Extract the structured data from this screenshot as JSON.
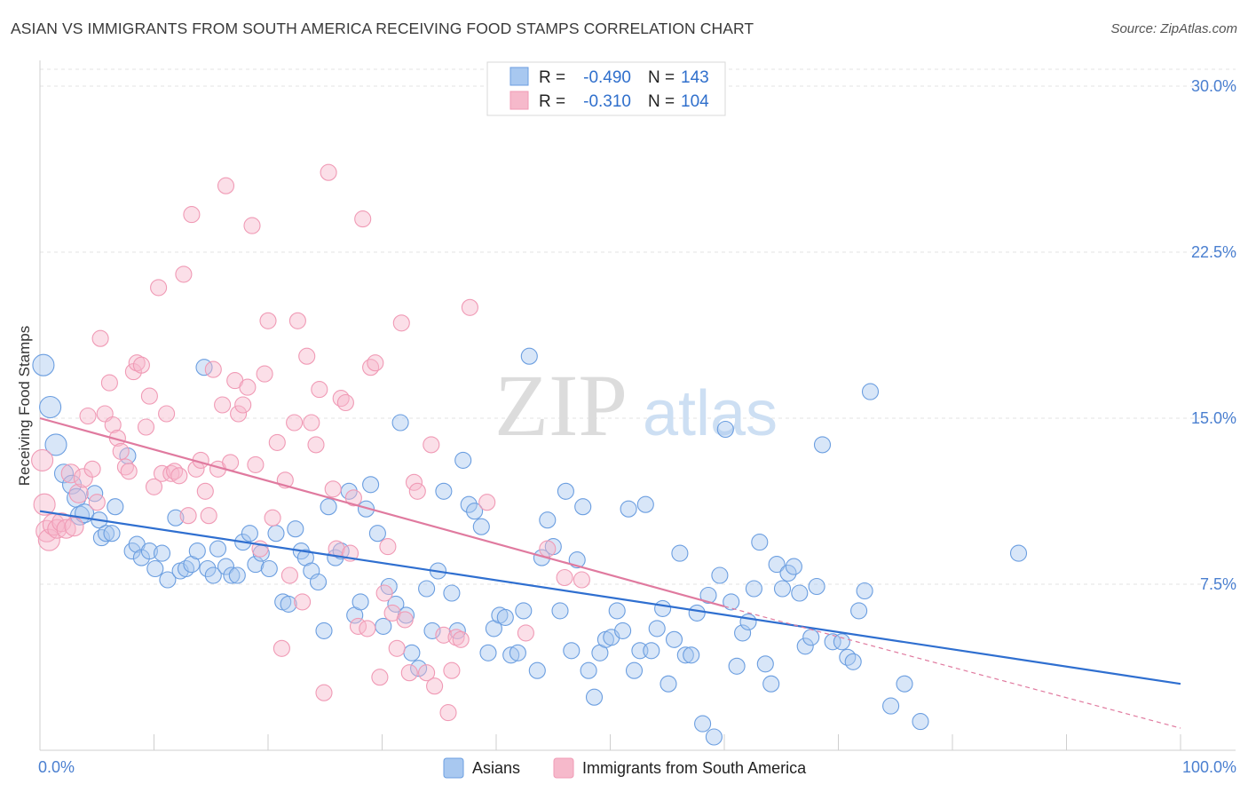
{
  "title": "ASIAN VS IMMIGRANTS FROM SOUTH AMERICA RECEIVING FOOD STAMPS CORRELATION CHART",
  "source": "Source: ZipAtlas.com",
  "watermark": {
    "part1": "ZIP",
    "part2": "atlas"
  },
  "legend": {
    "rows": [
      {
        "r_label": "R =",
        "r_value": "-0.490",
        "n_label": "N =",
        "n_value": "143",
        "color": "#a8c8f0"
      },
      {
        "r_label": "R =",
        "r_value": "-0.310",
        "n_label": "N =",
        "n_value": "104",
        "color": "#f6b9cb"
      }
    ]
  },
  "bottom_legend": [
    {
      "label": "Asians",
      "color": "#a8c8f0"
    },
    {
      "label": "Immigrants from South America",
      "color": "#f6b9cb"
    }
  ],
  "chart_data": {
    "type": "scatter",
    "ylabel": "Receiving Food Stamps",
    "xlim": [
      0,
      100
    ],
    "ylim": [
      0,
      30
    ],
    "y_ticks": [
      {
        "value": 7.5,
        "label": "7.5%"
      },
      {
        "value": 15,
        "label": "15.0%"
      },
      {
        "value": 22.5,
        "label": "22.5%"
      },
      {
        "value": 30,
        "label": "30.0%"
      }
    ],
    "x_tick_labels": [
      {
        "value": 0,
        "label": "0.0%"
      },
      {
        "value": 100,
        "label": "100.0%"
      }
    ],
    "grid": true,
    "series": [
      {
        "name": "Asians",
        "color": "#6b9ee0",
        "fill": "#a8c8f0",
        "trend": {
          "x": [
            0,
            100
          ],
          "y": [
            10.8,
            3.0
          ],
          "color": "#2f6fd0"
        },
        "points": [
          [
            0.3,
            17.4
          ],
          [
            0.9,
            15.5
          ],
          [
            1.4,
            13.8
          ],
          [
            2.1,
            12.5
          ],
          [
            2.8,
            12.0
          ],
          [
            3.2,
            11.4
          ],
          [
            3.5,
            10.6
          ],
          [
            3.9,
            10.7
          ],
          [
            4.8,
            11.6
          ],
          [
            5.2,
            10.4
          ],
          [
            5.4,
            9.6
          ],
          [
            5.8,
            9.8
          ],
          [
            6.3,
            9.8
          ],
          [
            6.6,
            11.0
          ],
          [
            7.7,
            13.3
          ],
          [
            8.1,
            9.0
          ],
          [
            8.5,
            9.3
          ],
          [
            8.9,
            8.7
          ],
          [
            9.6,
            9.0
          ],
          [
            10.1,
            8.2
          ],
          [
            10.7,
            8.9
          ],
          [
            11.2,
            7.7
          ],
          [
            11.9,
            10.5
          ],
          [
            12.3,
            8.1
          ],
          [
            12.8,
            8.2
          ],
          [
            13.3,
            8.4
          ],
          [
            13.8,
            9.0
          ],
          [
            14.4,
            17.3
          ],
          [
            14.7,
            8.2
          ],
          [
            15.2,
            7.9
          ],
          [
            15.6,
            9.1
          ],
          [
            16.3,
            8.3
          ],
          [
            16.8,
            7.9
          ],
          [
            17.3,
            7.9
          ],
          [
            17.8,
            9.4
          ],
          [
            18.4,
            9.8
          ],
          [
            18.9,
            8.4
          ],
          [
            19.4,
            8.9
          ],
          [
            20.1,
            8.2
          ],
          [
            20.7,
            9.8
          ],
          [
            21.3,
            6.7
          ],
          [
            21.8,
            6.6
          ],
          [
            22.4,
            10.0
          ],
          [
            22.9,
            9.0
          ],
          [
            23.3,
            8.7
          ],
          [
            23.8,
            8.1
          ],
          [
            24.4,
            7.6
          ],
          [
            24.9,
            5.4
          ],
          [
            25.3,
            11.0
          ],
          [
            25.9,
            8.7
          ],
          [
            26.4,
            9.0
          ],
          [
            27.1,
            11.7
          ],
          [
            27.6,
            6.1
          ],
          [
            28.1,
            6.7
          ],
          [
            28.6,
            10.9
          ],
          [
            29.0,
            12.0
          ],
          [
            29.6,
            9.8
          ],
          [
            30.1,
            5.6
          ],
          [
            30.6,
            7.4
          ],
          [
            31.2,
            6.6
          ],
          [
            31.6,
            14.8
          ],
          [
            32.1,
            6.1
          ],
          [
            32.6,
            4.4
          ],
          [
            33.2,
            3.7
          ],
          [
            33.9,
            7.3
          ],
          [
            34.4,
            5.4
          ],
          [
            34.9,
            8.1
          ],
          [
            35.4,
            11.7
          ],
          [
            36.1,
            7.1
          ],
          [
            36.6,
            5.4
          ],
          [
            37.1,
            13.1
          ],
          [
            37.6,
            11.1
          ],
          [
            38.1,
            10.8
          ],
          [
            38.7,
            10.1
          ],
          [
            39.3,
            4.4
          ],
          [
            39.8,
            5.5
          ],
          [
            40.3,
            6.1
          ],
          [
            40.8,
            6.0
          ],
          [
            41.3,
            4.3
          ],
          [
            41.9,
            4.4
          ],
          [
            42.4,
            6.3
          ],
          [
            42.9,
            17.8
          ],
          [
            43.6,
            3.6
          ],
          [
            44.0,
            8.7
          ],
          [
            44.5,
            10.4
          ],
          [
            45.0,
            9.2
          ],
          [
            45.6,
            6.3
          ],
          [
            46.1,
            11.7
          ],
          [
            46.6,
            4.5
          ],
          [
            47.1,
            8.6
          ],
          [
            47.6,
            11.0
          ],
          [
            48.1,
            3.6
          ],
          [
            48.6,
            2.4
          ],
          [
            49.1,
            4.4
          ],
          [
            49.6,
            5.0
          ],
          [
            50.1,
            5.1
          ],
          [
            50.6,
            6.3
          ],
          [
            51.1,
            5.4
          ],
          [
            51.6,
            10.9
          ],
          [
            52.1,
            3.6
          ],
          [
            52.6,
            4.5
          ],
          [
            53.1,
            11.1
          ],
          [
            53.6,
            4.5
          ],
          [
            54.1,
            5.5
          ],
          [
            54.6,
            6.4
          ],
          [
            55.1,
            3.0
          ],
          [
            55.6,
            5.0
          ],
          [
            56.1,
            8.9
          ],
          [
            56.6,
            4.3
          ],
          [
            57.1,
            4.3
          ],
          [
            57.6,
            6.2
          ],
          [
            58.1,
            1.2
          ],
          [
            58.6,
            7.0
          ],
          [
            59.1,
            0.6
          ],
          [
            59.6,
            7.9
          ],
          [
            60.1,
            14.5
          ],
          [
            60.6,
            6.7
          ],
          [
            61.1,
            3.8
          ],
          [
            61.6,
            5.3
          ],
          [
            62.1,
            5.8
          ],
          [
            62.6,
            7.3
          ],
          [
            63.1,
            9.4
          ],
          [
            63.6,
            3.9
          ],
          [
            64.1,
            3.0
          ],
          [
            64.6,
            8.4
          ],
          [
            65.1,
            7.3
          ],
          [
            65.6,
            8.0
          ],
          [
            66.1,
            8.3
          ],
          [
            66.6,
            7.1
          ],
          [
            67.1,
            4.7
          ],
          [
            67.6,
            5.1
          ],
          [
            68.1,
            7.4
          ],
          [
            68.6,
            13.8
          ],
          [
            69.5,
            4.9
          ],
          [
            70.3,
            4.9
          ],
          [
            70.8,
            4.2
          ],
          [
            71.3,
            4.0
          ],
          [
            71.8,
            6.3
          ],
          [
            72.3,
            7.2
          ],
          [
            72.8,
            16.2
          ],
          [
            74.6,
            2.0
          ],
          [
            75.8,
            3.0
          ],
          [
            77.2,
            1.3
          ],
          [
            85.8,
            8.9
          ]
        ]
      },
      {
        "name": "Immigrants from South America",
        "color": "#f09ab5",
        "fill": "#f6b9cb",
        "trend": {
          "x": [
            0,
            60
          ],
          "y": [
            15.0,
            6.5
          ],
          "color": "#e07a9f",
          "dashed_extension": {
            "x": [
              60,
              100
            ],
            "y": [
              6.5,
              1.0
            ]
          }
        },
        "points": [
          [
            0.2,
            13.1
          ],
          [
            0.4,
            11.1
          ],
          [
            0.6,
            9.9
          ],
          [
            0.8,
            9.5
          ],
          [
            1.2,
            10.2
          ],
          [
            1.5,
            10.0
          ],
          [
            1.9,
            10.3
          ],
          [
            2.3,
            10.0
          ],
          [
            2.7,
            12.5
          ],
          [
            3.0,
            10.1
          ],
          [
            3.4,
            11.6
          ],
          [
            3.8,
            12.3
          ],
          [
            4.2,
            15.1
          ],
          [
            4.6,
            12.7
          ],
          [
            5.0,
            11.2
          ],
          [
            5.3,
            18.6
          ],
          [
            5.7,
            15.2
          ],
          [
            6.1,
            16.6
          ],
          [
            6.4,
            14.7
          ],
          [
            6.8,
            14.1
          ],
          [
            7.1,
            13.5
          ],
          [
            7.5,
            12.8
          ],
          [
            7.8,
            12.6
          ],
          [
            8.2,
            17.1
          ],
          [
            8.5,
            17.5
          ],
          [
            8.9,
            17.4
          ],
          [
            9.3,
            14.6
          ],
          [
            9.6,
            16.0
          ],
          [
            10.0,
            11.9
          ],
          [
            10.4,
            20.9
          ],
          [
            10.7,
            12.5
          ],
          [
            11.1,
            15.2
          ],
          [
            11.5,
            12.5
          ],
          [
            11.8,
            12.6
          ],
          [
            12.2,
            12.4
          ],
          [
            12.6,
            21.5
          ],
          [
            13.0,
            10.6
          ],
          [
            13.3,
            24.2
          ],
          [
            13.7,
            12.7
          ],
          [
            14.1,
            13.1
          ],
          [
            14.5,
            11.7
          ],
          [
            14.8,
            10.6
          ],
          [
            15.2,
            17.2
          ],
          [
            15.6,
            12.7
          ],
          [
            16.0,
            15.6
          ],
          [
            16.3,
            25.5
          ],
          [
            16.7,
            13.0
          ],
          [
            17.1,
            16.7
          ],
          [
            17.4,
            15.2
          ],
          [
            17.8,
            15.6
          ],
          [
            18.2,
            16.4
          ],
          [
            18.6,
            23.7
          ],
          [
            18.9,
            12.9
          ],
          [
            19.3,
            9.1
          ],
          [
            19.7,
            17.0
          ],
          [
            20.0,
            19.4
          ],
          [
            20.4,
            10.5
          ],
          [
            20.8,
            13.9
          ],
          [
            21.2,
            4.6
          ],
          [
            21.5,
            12.2
          ],
          [
            21.9,
            7.9
          ],
          [
            22.3,
            14.8
          ],
          [
            22.6,
            19.4
          ],
          [
            23.0,
            6.7
          ],
          [
            23.4,
            17.8
          ],
          [
            23.8,
            14.8
          ],
          [
            24.2,
            13.8
          ],
          [
            24.5,
            16.3
          ],
          [
            24.9,
            2.6
          ],
          [
            25.3,
            26.1
          ],
          [
            25.7,
            11.8
          ],
          [
            26.0,
            9.1
          ],
          [
            26.4,
            15.9
          ],
          [
            26.8,
            15.7
          ],
          [
            27.2,
            8.9
          ],
          [
            27.5,
            11.4
          ],
          [
            27.9,
            5.6
          ],
          [
            28.3,
            24.0
          ],
          [
            28.7,
            5.5
          ],
          [
            29.0,
            17.3
          ],
          [
            29.4,
            17.5
          ],
          [
            29.8,
            3.3
          ],
          [
            30.2,
            7.1
          ],
          [
            30.5,
            9.2
          ],
          [
            30.9,
            6.2
          ],
          [
            31.3,
            4.6
          ],
          [
            31.7,
            19.3
          ],
          [
            32.0,
            5.9
          ],
          [
            32.4,
            3.5
          ],
          [
            32.8,
            12.1
          ],
          [
            33.1,
            11.7
          ],
          [
            33.9,
            3.5
          ],
          [
            34.3,
            13.8
          ],
          [
            34.6,
            2.9
          ],
          [
            35.4,
            5.2
          ],
          [
            35.8,
            1.7
          ],
          [
            36.1,
            3.6
          ],
          [
            36.5,
            5.1
          ],
          [
            36.9,
            5.0
          ],
          [
            37.7,
            20.0
          ],
          [
            39.2,
            11.2
          ],
          [
            42.6,
            5.3
          ],
          [
            44.5,
            9.1
          ],
          [
            46.0,
            7.8
          ],
          [
            47.5,
            7.7
          ]
        ]
      }
    ]
  }
}
